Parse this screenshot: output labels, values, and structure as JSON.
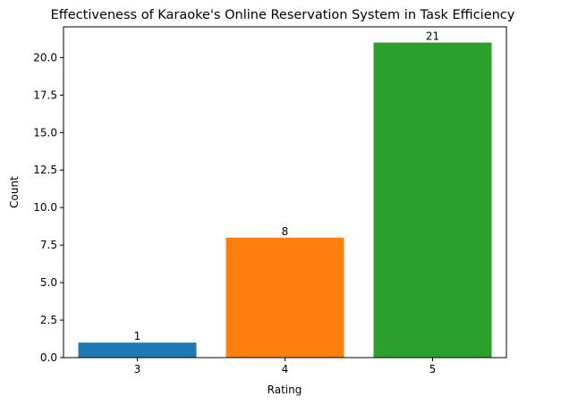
{
  "chart_data": {
    "type": "bar",
    "title": "Effectiveness of Karaoke's Online Reservation System in Task Efficiency",
    "xlabel": "Rating",
    "ylabel": "Count",
    "categories": [
      "3",
      "4",
      "5"
    ],
    "values": [
      1,
      8,
      21
    ],
    "data_labels": [
      "1",
      "8",
      "21"
    ],
    "ylim": [
      0,
      22.05
    ],
    "yticks": [
      0.0,
      2.5,
      5.0,
      7.5,
      10.0,
      12.5,
      15.0,
      17.5,
      20.0
    ],
    "ytick_labels": [
      "0.0",
      "2.5",
      "5.0",
      "7.5",
      "10.0",
      "12.5",
      "15.0",
      "17.5",
      "20.0"
    ],
    "colors": [
      "#1f77b4",
      "#ff7f0e",
      "#2ca02c"
    ],
    "grid": false,
    "legend": "none"
  }
}
